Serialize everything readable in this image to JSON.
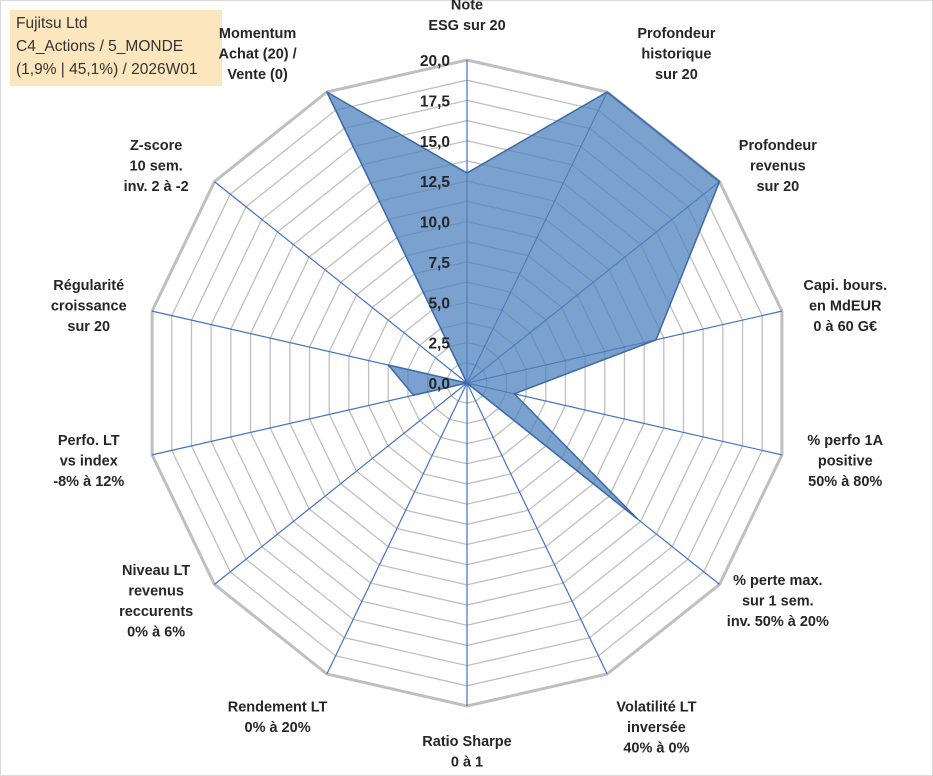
{
  "info": {
    "line1": "Fujitsu Ltd",
    "line2": "C4_Actions / 5_MONDE",
    "line3": "(1,9% | 45,1%) / 2026W01"
  },
  "chart_data": {
    "type": "radar",
    "title": "Fujitsu Ltd",
    "rmin": 0,
    "rmax": 20,
    "grid_step": 1.25,
    "tick_labels": [
      "0,0",
      "2,5",
      "5,0",
      "7,5",
      "10,0",
      "12,5",
      "15,0",
      "17,5",
      "20,0"
    ],
    "axes": [
      {
        "label": [
          "Note",
          "ESG sur 20"
        ],
        "value": 13
      },
      {
        "label": [
          "Profondeur",
          "historique",
          "sur 20"
        ],
        "value": 20
      },
      {
        "label": [
          "Profondeur",
          "revenus",
          "sur 20"
        ],
        "value": 20
      },
      {
        "label": [
          "Capi. bours.",
          "en MdEUR",
          "0 à 60 G€"
        ],
        "value": 12
      },
      {
        "label": [
          "% perfo 1A",
          "positive",
          "50% à 80%"
        ],
        "value": 3
      },
      {
        "label": [
          "% perte max.",
          "sur 1 sem.",
          "inv. 50% à 20%"
        ],
        "value": 13.5
      },
      {
        "label": [
          "Volatilité LT",
          "inversée",
          "40% à 0%"
        ],
        "value": 0
      },
      {
        "label": [
          "Ratio Sharpe",
          "0 à 1"
        ],
        "value": 0
      },
      {
        "label": [
          "Rendement LT",
          "0% à 20%"
        ],
        "value": 0
      },
      {
        "label": [
          "Niveau LT",
          "revenus",
          "reccurents",
          "0% à 6%"
        ],
        "value": 0
      },
      {
        "label": [
          "Perfo. LT",
          "vs index",
          "-8% à 12%"
        ],
        "value": 3.4
      },
      {
        "label": [
          "Régularité",
          "croissance",
          "sur 20"
        ],
        "value": 5
      },
      {
        "label": [
          "Z-score",
          "10 sem.",
          "inv. 2 à -2"
        ],
        "value": 0
      },
      {
        "label": [
          "Momentum",
          "Achat (20) /",
          "Vente (0)"
        ],
        "value": 20
      }
    ],
    "series": [
      {
        "name": "Fujitsu Ltd",
        "color": "#4f81bd",
        "fill_opacity": 0.75
      }
    ],
    "grid_color": "#bfbfbf",
    "spoke_color": "#4472c4"
  }
}
